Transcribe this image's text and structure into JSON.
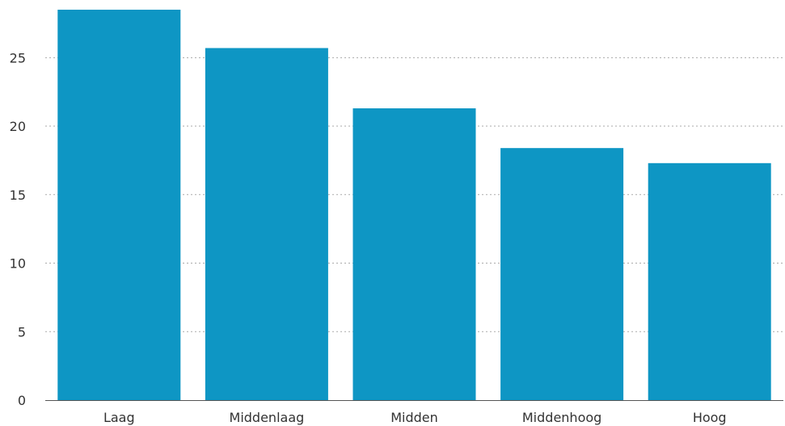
{
  "chart_data": {
    "type": "bar",
    "categories": [
      "Laag",
      "Middenlaag",
      "Midden",
      "Middenhoog",
      "Hoog"
    ],
    "values": [
      28.5,
      25.7,
      21.3,
      18.4,
      17.3
    ],
    "title": "",
    "xlabel": "",
    "ylabel": "",
    "ylim": [
      0,
      28.5
    ],
    "yticks": [
      0,
      5,
      10,
      15,
      20,
      25
    ],
    "grid": "horizontal dotted",
    "bar_color": "#0e96c4",
    "grid_color": "#aaaaaa",
    "axis_color": "#555555"
  }
}
